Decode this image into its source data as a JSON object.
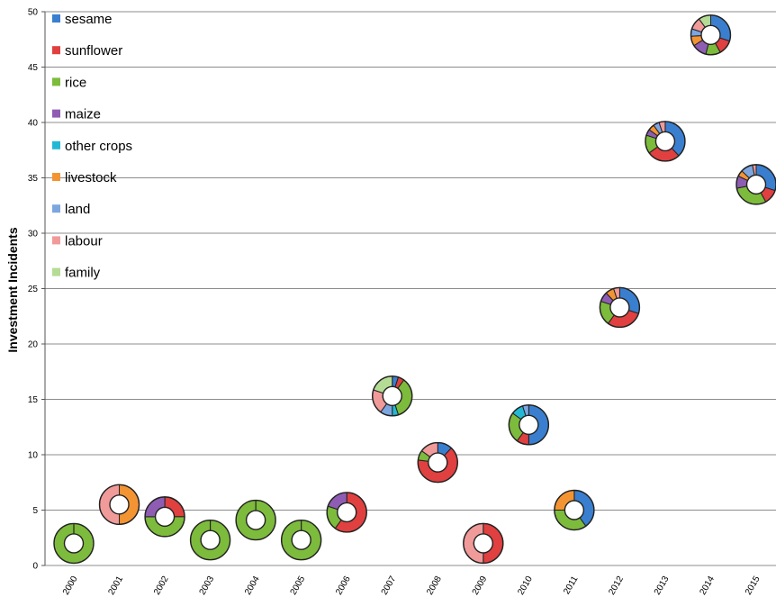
{
  "chart_data": {
    "type": "scatter",
    "ylabel": "Investment Incidents",
    "xlabel": "",
    "title": "",
    "ylim": [
      0,
      50
    ],
    "yticks": [
      0,
      5,
      10,
      15,
      20,
      25,
      30,
      35,
      40,
      45,
      50
    ],
    "grid": "horizontal",
    "legend_position": "top-left",
    "categories": [
      "2000",
      "2001",
      "2002",
      "2003",
      "2004",
      "2005",
      "2006",
      "2007",
      "2008",
      "2009",
      "2010",
      "2011",
      "2012",
      "2013",
      "2014",
      "2015"
    ],
    "legend": [
      {
        "key": "sesame",
        "label": "sesame",
        "color": "#3a7fcf"
      },
      {
        "key": "sunflower",
        "label": "sunflower",
        "color": "#e04040"
      },
      {
        "key": "rice",
        "label": "rice",
        "color": "#7dbb3c"
      },
      {
        "key": "maize",
        "label": "maize",
        "color": "#8e5db3"
      },
      {
        "key": "other_crops",
        "label": "other crops",
        "color": "#22b8d4"
      },
      {
        "key": "livestock",
        "label": "livestock",
        "color": "#f39433"
      },
      {
        "key": "land",
        "label": "land",
        "color": "#7da6e0"
      },
      {
        "key": "labour",
        "label": "labour",
        "color": "#f19a9a"
      },
      {
        "key": "family",
        "label": "family",
        "color": "#b5dc94"
      }
    ],
    "points": [
      {
        "year": "2000",
        "y": 2,
        "composition": {
          "rice": 1
        }
      },
      {
        "year": "2001",
        "y": 5.5,
        "composition": {
          "livestock": 0.5,
          "labour": 0.5
        }
      },
      {
        "year": "2002",
        "y": 4.4,
        "composition": {
          "sunflower": 0.25,
          "rice": 0.5,
          "maize": 0.25
        }
      },
      {
        "year": "2003",
        "y": 2.3,
        "composition": {
          "rice": 1
        }
      },
      {
        "year": "2004",
        "y": 4.1,
        "composition": {
          "rice": 1
        }
      },
      {
        "year": "2005",
        "y": 2.3,
        "composition": {
          "rice": 1
        }
      },
      {
        "year": "2006",
        "y": 4.8,
        "composition": {
          "sunflower": 0.6,
          "rice": 0.2,
          "maize": 0.2
        }
      },
      {
        "year": "2007",
        "y": 15.3,
        "composition": {
          "sesame": 0.05,
          "sunflower": 0.05,
          "rice": 0.35,
          "other_crops": 0.05,
          "land": 0.1,
          "labour": 0.2,
          "family": 0.2
        }
      },
      {
        "year": "2008",
        "y": 9.3,
        "composition": {
          "sesame": 0.12,
          "sunflower": 0.65,
          "rice": 0.08,
          "labour": 0.15
        }
      },
      {
        "year": "2009",
        "y": 2,
        "composition": {
          "sunflower": 0.5,
          "labour": 0.5
        }
      },
      {
        "year": "2010",
        "y": 12.7,
        "composition": {
          "sesame": 0.5,
          "sunflower": 0.1,
          "rice": 0.25,
          "other_crops": 0.1,
          "land": 0.05
        }
      },
      {
        "year": "2011",
        "y": 5,
        "composition": {
          "sesame": 0.4,
          "rice": 0.35,
          "livestock": 0.25
        }
      },
      {
        "year": "2012",
        "y": 23.3,
        "composition": {
          "sesame": 0.3,
          "sunflower": 0.3,
          "rice": 0.2,
          "maize": 0.08,
          "livestock": 0.07,
          "labour": 0.05
        }
      },
      {
        "year": "2013",
        "y": 38.3,
        "composition": {
          "sesame": 0.38,
          "sunflower": 0.27,
          "rice": 0.15,
          "maize": 0.05,
          "livestock": 0.05,
          "land": 0.05,
          "labour": 0.05
        }
      },
      {
        "year": "2014",
        "y": 47.9,
        "composition": {
          "sesame": 0.3,
          "sunflower": 0.12,
          "rice": 0.12,
          "maize": 0.12,
          "livestock": 0.08,
          "land": 0.06,
          "labour": 0.1,
          "family": 0.1
        }
      },
      {
        "year": "2015",
        "y": 34.4,
        "composition": {
          "sesame": 0.3,
          "sunflower": 0.12,
          "rice": 0.3,
          "maize": 0.1,
          "livestock": 0.05,
          "land": 0.1,
          "labour": 0.03
        }
      }
    ]
  }
}
